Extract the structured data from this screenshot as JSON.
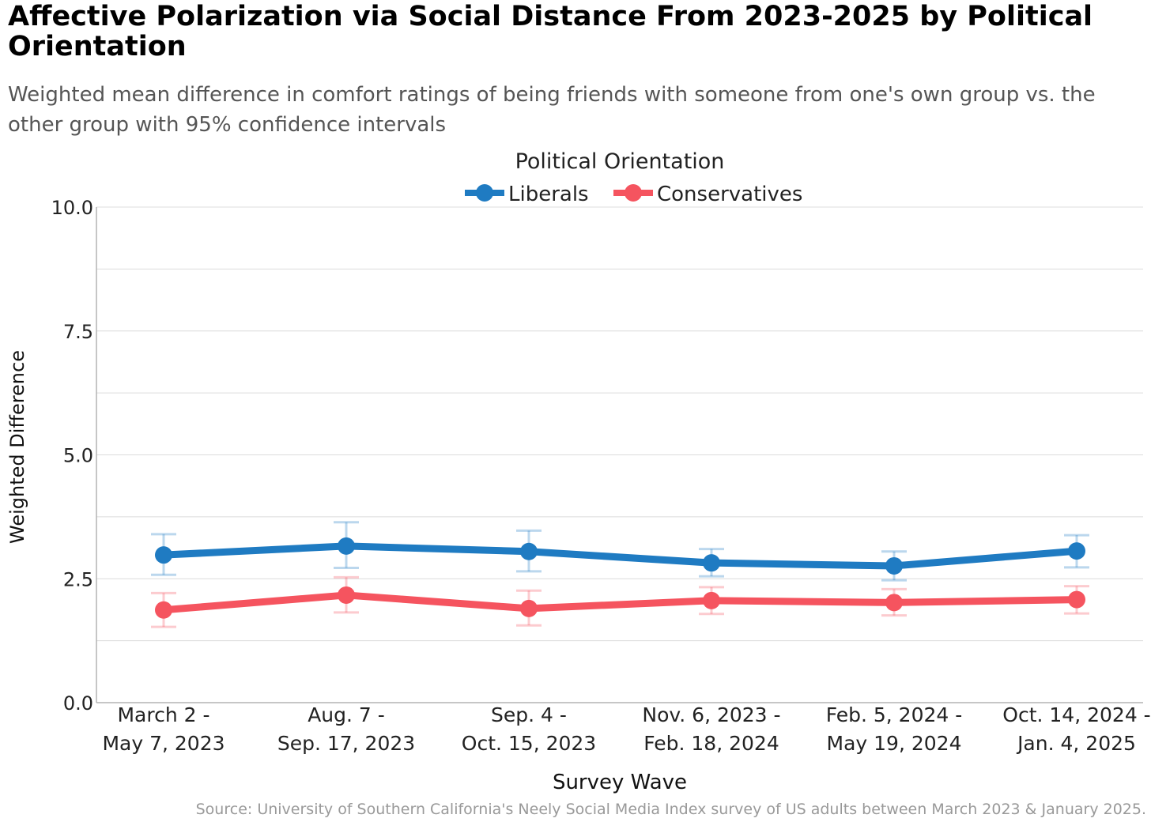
{
  "title": "Affective Polarization via Social Distance From 2023-2025 by Political Orientation",
  "subtitle": "Weighted mean difference in comfort ratings of being friends with someone from one's own group vs. the other group with 95% confidence intervals",
  "source": "Source: University of Southern California's Neely Social Media Index survey of US adults between March 2023 & January 2025.",
  "chart_data": {
    "type": "line",
    "title": "Affective Polarization via Social Distance From 2023-2025 by Political Orientation",
    "subtitle": "Weighted mean difference in comfort ratings of being friends with someone from one's own group vs. the other group with 95% confidence intervals",
    "xlabel": "Survey Wave",
    "ylabel": "Weighted Difference",
    "ylim": [
      0,
      10
    ],
    "yticks": [
      "0.0",
      "2.5",
      "5.0",
      "7.5",
      "10.0"
    ],
    "grid": true,
    "legend_title": "Political Orientation",
    "legend_position": "top-center",
    "categories": [
      [
        "March 2 -",
        "May 7, 2023"
      ],
      [
        "Aug. 7 -",
        "Sep. 17, 2023"
      ],
      [
        "Sep. 4 -",
        "Oct. 15, 2023"
      ],
      [
        "Nov. 6, 2023 -",
        "Feb. 18, 2024"
      ],
      [
        "Feb. 5, 2024 -",
        "May 19, 2024"
      ],
      [
        "Oct. 14, 2024 -",
        "Jan. 4, 2025"
      ]
    ],
    "series": [
      {
        "name": "Liberals",
        "color": "#1f7bc2",
        "values": [
          2.98,
          3.16,
          3.05,
          2.82,
          2.76,
          3.06
        ],
        "ci_low": [
          2.58,
          2.72,
          2.65,
          2.55,
          2.47,
          2.73
        ],
        "ci_high": [
          3.4,
          3.64,
          3.47,
          3.1,
          3.05,
          3.38
        ]
      },
      {
        "name": "Conservatives",
        "color": "#f5545f",
        "values": [
          1.87,
          2.17,
          1.9,
          2.06,
          2.02,
          2.08
        ],
        "ci_low": [
          1.53,
          1.82,
          1.56,
          1.79,
          1.76,
          1.8
        ],
        "ci_high": [
          2.21,
          2.53,
          2.26,
          2.33,
          2.29,
          2.35
        ]
      }
    ]
  }
}
